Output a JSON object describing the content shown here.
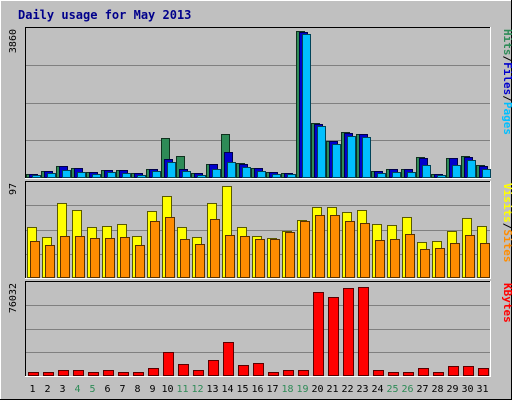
{
  "chart_data": {
    "type": "bar",
    "title": "Daily usage for May 2013",
    "days": [
      "1",
      "2",
      "3",
      "4",
      "5",
      "6",
      "7",
      "8",
      "9",
      "10",
      "11",
      "12",
      "13",
      "14",
      "15",
      "16",
      "17",
      "18",
      "19",
      "20",
      "21",
      "22",
      "23",
      "24",
      "25",
      "26",
      "27",
      "28",
      "29",
      "30",
      "31"
    ],
    "weekend_days": [
      "4",
      "5",
      "11",
      "12",
      "18",
      "19",
      "25",
      "26"
    ],
    "panels": [
      {
        "id": "hits",
        "ymax_label": "3860",
        "ymax": 3860,
        "legend": [
          {
            "text": "Pages",
            "color": "#00bfff"
          },
          {
            "text": "/",
            "color": "#000000"
          },
          {
            "text": "Files",
            "color": "#0000cd"
          },
          {
            "text": "/",
            "color": "#000000"
          },
          {
            "text": "Hits",
            "color": "#2e8b57"
          }
        ],
        "series": [
          {
            "name": "Hits",
            "color": "#2e8b57",
            "values": [
              100,
              180,
              310,
              260,
              150,
              210,
              210,
              120,
              240,
              1030,
              580,
              130,
              350,
              1140,
              380,
              260,
              150,
              130,
              3820,
              1420,
              970,
              1180,
              1140,
              180,
              240,
              230,
              540,
              100,
              520,
              580,
              330
            ]
          },
          {
            "name": "Files",
            "color": "#0000cd",
            "values": [
              100,
              180,
              300,
              250,
              150,
              200,
              210,
              120,
              240,
              500,
              240,
              130,
              350,
              670,
              370,
              250,
              150,
              130,
              3780,
              1400,
              960,
              1160,
              1140,
              180,
              230,
              230,
              530,
              100,
              520,
              550,
              320
            ]
          },
          {
            "name": "Pages",
            "color": "#00bfff",
            "values": [
              80,
              120,
              200,
              160,
              110,
              150,
              140,
              90,
              170,
              420,
              180,
              90,
              230,
              410,
              280,
              180,
              110,
              100,
              3720,
              1360,
              880,
              1080,
              1060,
              130,
              160,
              150,
              330,
              70,
              330,
              460,
              240
            ]
          }
        ]
      },
      {
        "id": "visits",
        "ymax_label": "97",
        "ymax": 97,
        "legend": [
          {
            "text": "Sites",
            "color": "#ff8c00"
          },
          {
            "text": "/",
            "color": "#000000"
          },
          {
            "text": "Visits",
            "color": "#ffff00"
          }
        ],
        "series": [
          {
            "name": "Visits",
            "color": "#ffff00",
            "values": [
              52,
              42,
              77,
              69,
              52,
              53,
              55,
              43,
              68,
              84,
              52,
              42,
              77,
              94,
              52,
              43,
              41,
              48,
              59,
              73,
              73,
              67,
              69,
              55,
              54,
              62,
              37,
              38,
              48,
              61,
              53
            ]
          },
          {
            "name": "Sites",
            "color": "#ff8c00",
            "values": [
              38,
              34,
              43,
              43,
              41,
              41,
              42,
              34,
              58,
              62,
              40,
              35,
              60,
              44,
              43,
              40,
              40,
              47,
              58,
              64,
              64,
              58,
              56,
              39,
              40,
              45,
              30,
              31,
              36,
              44,
              36
            ]
          }
        ]
      },
      {
        "id": "kbytes",
        "ymax_label": "76032",
        "ymax": 76032,
        "legend": [
          {
            "text": "KBytes",
            "color": "#ff0000"
          }
        ],
        "series": [
          {
            "name": "KBytes",
            "color": "#ff0000",
            "values": [
              3200,
              3200,
              4600,
              4600,
              3200,
              4600,
              3200,
              3200,
              6200,
              20000,
              10000,
              4600,
              13000,
              28000,
              9300,
              11000,
              3200,
              4600,
              4600,
              68500,
              64500,
              72000,
              73000,
              4600,
              3200,
              3200,
              6200,
              3200,
              8100,
              8100,
              6200
            ]
          }
        ]
      }
    ]
  }
}
